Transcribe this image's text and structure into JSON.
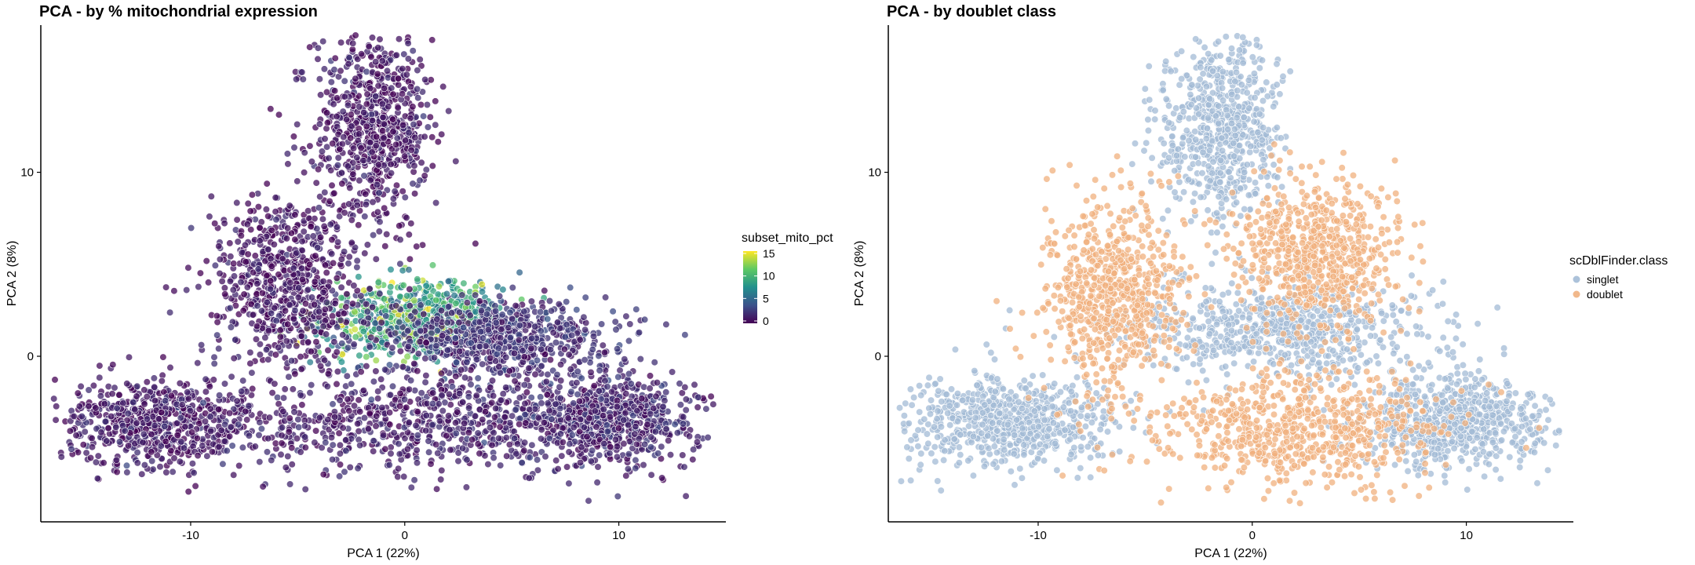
{
  "chart_data": [
    {
      "type": "scatter",
      "title": "PCA - by % mitochondrial expression",
      "xlabel": "PCA 1 (22%)",
      "ylabel": "PCA 2 (8%)",
      "xlim": [
        -17,
        15
      ],
      "ylim": [
        -9,
        18
      ],
      "x_ticks": [
        -10,
        0,
        10
      ],
      "y_ticks": [
        0,
        10
      ],
      "grid": false,
      "color_by": "continuous",
      "legend": {
        "title": "subset_mito_pct",
        "placement": "right",
        "ticks": [
          0,
          5,
          10,
          15
        ],
        "range": [
          0,
          15
        ],
        "colormap": [
          "#440154",
          "#3b528b",
          "#21908d",
          "#5dc963",
          "#fde725"
        ]
      },
      "clusters": [
        {
          "center": [
            -1.5,
            12.5
          ],
          "spread": [
            1.4,
            2.6
          ],
          "value": 0.8
        },
        {
          "center": [
            -11.5,
            -3.5
          ],
          "spread": [
            2.4,
            1.2
          ],
          "value": 1.0
        },
        {
          "center": [
            9.5,
            -3.5
          ],
          "spread": [
            2.2,
            1.2
          ],
          "value": 1.5
        },
        {
          "center": [
            0.5,
            2.0
          ],
          "spread": [
            2.0,
            1.0
          ],
          "value": 9.0
        },
        {
          "center": [
            4.5,
            1.0
          ],
          "spread": [
            2.6,
            1.0
          ],
          "value": 2.0
        },
        {
          "center": [
            -5.5,
            4.0
          ],
          "spread": [
            1.8,
            2.5
          ],
          "value": 0.8
        },
        {
          "center": [
            1.0,
            -3.5
          ],
          "spread": [
            4.0,
            1.4
          ],
          "value": 1.2
        }
      ]
    },
    {
      "type": "scatter",
      "title": "PCA - by doublet class",
      "xlabel": "PCA 1 (22%)",
      "ylabel": "PCA 2 (8%)",
      "xlim": [
        -17,
        15
      ],
      "ylim": [
        -9,
        18
      ],
      "x_ticks": [
        -10,
        0,
        10
      ],
      "y_ticks": [
        0,
        10
      ],
      "grid": false,
      "color_by": "categorical",
      "legend": {
        "title": "scDblFinder.class",
        "placement": "right",
        "entries": [
          {
            "label": "singlet",
            "color": "#a3bbd6"
          },
          {
            "label": "doublet",
            "color": "#f0b07e"
          }
        ]
      },
      "clusters": [
        {
          "center": [
            -1.5,
            12.5
          ],
          "spread": [
            1.4,
            2.6
          ],
          "class": "singlet"
        },
        {
          "center": [
            -11.5,
            -3.5
          ],
          "spread": [
            2.4,
            1.2
          ],
          "class": "singlet"
        },
        {
          "center": [
            9.5,
            -3.5
          ],
          "spread": [
            2.2,
            1.2
          ],
          "class": "singlet"
        },
        {
          "center": [
            1.5,
            1.5
          ],
          "spread": [
            3.5,
            1.2
          ],
          "class": "singlet"
        },
        {
          "center": [
            -6.5,
            3.5
          ],
          "spread": [
            1.6,
            2.6
          ],
          "class": "doublet"
        },
        {
          "center": [
            3.0,
            5.5
          ],
          "spread": [
            1.8,
            2.0
          ],
          "class": "doublet"
        },
        {
          "center": [
            2.0,
            -4.0
          ],
          "spread": [
            3.5,
            1.5
          ],
          "class": "doublet"
        }
      ]
    }
  ]
}
